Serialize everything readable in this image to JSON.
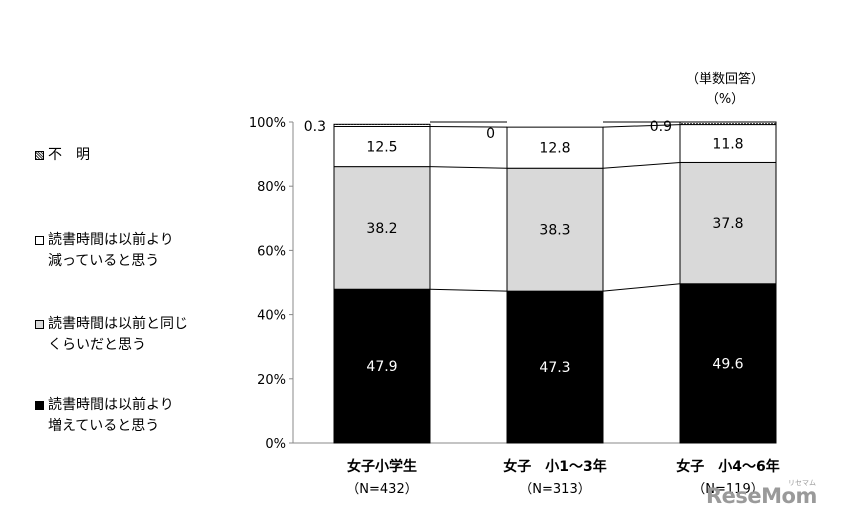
{
  "unit_note": [
    "（単数回答）",
    "（%）"
  ],
  "legend": [
    {
      "lines": [
        "不　明"
      ],
      "color": "#9b9b9b",
      "pattern": "dots"
    },
    {
      "lines": [
        "読書時間は以前より",
        "減っていると思う"
      ],
      "color": "#ffffff"
    },
    {
      "lines": [
        "読書時間は以前と同じ",
        "くらいだと思う"
      ],
      "color": "#d9d9d9"
    },
    {
      "lines": [
        "読書時間は以前より",
        "増えていると思う"
      ],
      "color": "#000000"
    }
  ],
  "watermark": "ReseMom",
  "watermark_sub": "リセマム",
  "chart_data": {
    "type": "bar",
    "stacked": true,
    "percent": true,
    "categories": [
      "女子小学生",
      "女子　小1～3年",
      "女子　小4～6年"
    ],
    "category_sublabels": [
      "（N=432）",
      "（N=313）",
      "（N=119）"
    ],
    "yticks": [
      "0%",
      "20%",
      "40%",
      "60%",
      "80%",
      "100%"
    ],
    "ylim": [
      0,
      100
    ],
    "series": [
      {
        "name": "読書時間は以前より増えていると思う",
        "values": [
          47.9,
          47.3,
          49.6
        ],
        "labels": [
          "47.9",
          "47.3",
          "49.6"
        ],
        "color": "#000000",
        "label_color": "#ffffff"
      },
      {
        "name": "読書時間は以前と同じくらいだと思う",
        "values": [
          38.2,
          38.3,
          37.8
        ],
        "labels": [
          "38.2",
          "38.3",
          "37.8"
        ],
        "color": "#d9d9d9",
        "label_color": "#000000"
      },
      {
        "name": "読書時間は以前より減っていると思う",
        "values": [
          12.5,
          12.8,
          11.8
        ],
        "labels": [
          "12.5",
          "12.8",
          "11.8"
        ],
        "color": "#ffffff",
        "label_color": "#000000"
      },
      {
        "name": "不　明",
        "values": [
          0.3,
          0,
          0.9
        ],
        "labels": [
          "0.3",
          "0",
          "0.9"
        ],
        "color": "#9b9b9b",
        "label_color": "#000000",
        "pattern": "dots"
      }
    ],
    "legend_position": "left",
    "grid": false
  }
}
